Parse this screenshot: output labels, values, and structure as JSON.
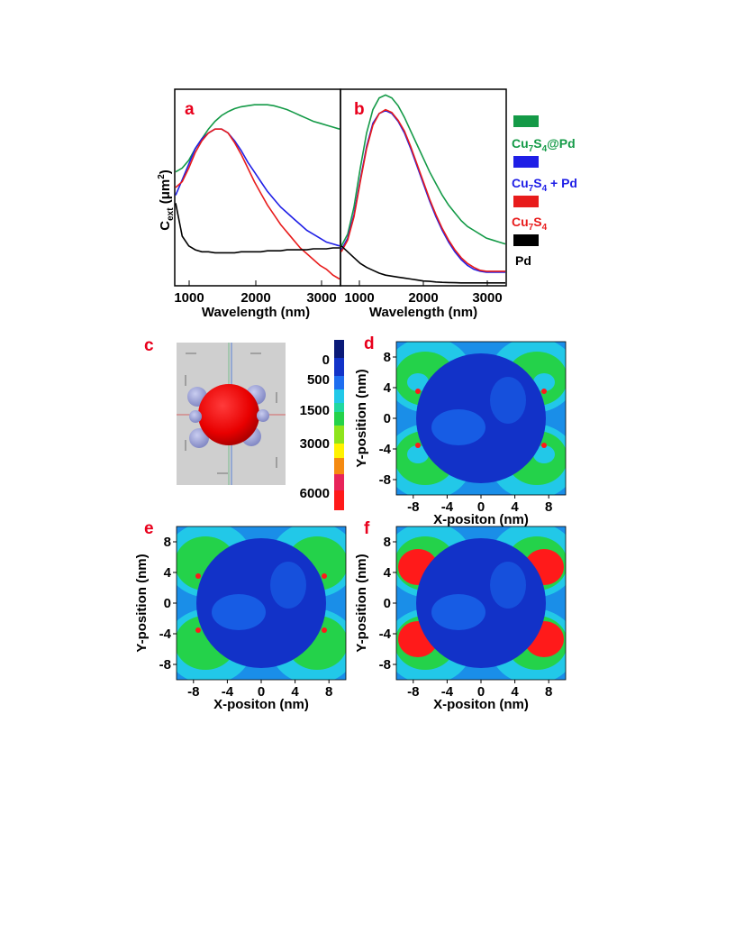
{
  "panel_letters": {
    "a": "a",
    "b": "b",
    "c": "c",
    "d": "d",
    "e": "e",
    "f": "f"
  },
  "legend": [
    {
      "name": "Cu7S4@Pd",
      "base": "Cu",
      "sub1": "7",
      "mid": "S",
      "sub2": "4",
      "tail": "@Pd",
      "color": "#149a47"
    },
    {
      "name": "Cu7S4 + Pd",
      "base": "Cu",
      "sub1": "7",
      "mid": "S",
      "sub2": "4",
      "tail": " + Pd",
      "color": "#1f1fe6"
    },
    {
      "name": "Cu7S4",
      "base": "Cu",
      "sub1": "7",
      "mid": "S",
      "sub2": "4",
      "tail": "",
      "color": "#e81c1c"
    },
    {
      "name": "Pd",
      "base": "Pd",
      "sub1": "",
      "mid": "",
      "sub2": "",
      "tail": "",
      "color": "#000000"
    }
  ],
  "ylabel_spectra": {
    "base": "C",
    "sub": "ext",
    "mid": " (μm",
    "sup": "2",
    "tail": ")"
  },
  "colorbar": {
    "ticks": [
      "0",
      "500",
      "1500",
      "3000",
      "6000"
    ]
  },
  "chart_data": [
    {
      "type": "line",
      "panel": "a",
      "xlabel": "Wavelength (nm)",
      "ylabel": "Cext (μm2)",
      "xlim": [
        800,
        3300
      ],
      "ylim": [
        0,
        1
      ],
      "xticks": [
        "1000",
        "2000",
        "3000"
      ],
      "x": [
        800,
        900,
        1000,
        1100,
        1200,
        1300,
        1400,
        1500,
        1600,
        1700,
        1800,
        1900,
        2000,
        2100,
        2200,
        2300,
        2400,
        2500,
        2600,
        2700,
        2800,
        2900,
        3000,
        3100,
        3200,
        3300
      ],
      "series": [
        {
          "name": "Cu7S4@Pd",
          "values": [
            0.58,
            0.6,
            0.64,
            0.7,
            0.75,
            0.8,
            0.84,
            0.87,
            0.89,
            0.905,
            0.915,
            0.92,
            0.925,
            0.925,
            0.925,
            0.92,
            0.91,
            0.9,
            0.885,
            0.87,
            0.855,
            0.84,
            0.83,
            0.82,
            0.81,
            0.8
          ]
        },
        {
          "name": "Cu7S4 + Pd",
          "values": [
            0.46,
            0.54,
            0.62,
            0.7,
            0.75,
            0.78,
            0.8,
            0.8,
            0.78,
            0.74,
            0.69,
            0.63,
            0.58,
            0.53,
            0.48,
            0.44,
            0.4,
            0.37,
            0.34,
            0.31,
            0.28,
            0.26,
            0.24,
            0.22,
            0.21,
            0.2
          ]
        },
        {
          "name": "Cu7S4",
          "values": [
            0.5,
            0.53,
            0.6,
            0.68,
            0.74,
            0.78,
            0.8,
            0.8,
            0.78,
            0.73,
            0.67,
            0.6,
            0.53,
            0.47,
            0.41,
            0.36,
            0.31,
            0.27,
            0.23,
            0.19,
            0.16,
            0.13,
            0.1,
            0.08,
            0.05,
            0.03
          ]
        },
        {
          "name": "Pd",
          "values": [
            0.42,
            0.25,
            0.2,
            0.18,
            0.17,
            0.17,
            0.165,
            0.165,
            0.165,
            0.165,
            0.17,
            0.17,
            0.17,
            0.17,
            0.175,
            0.175,
            0.175,
            0.18,
            0.18,
            0.18,
            0.18,
            0.185,
            0.185,
            0.185,
            0.19,
            0.19
          ]
        }
      ]
    },
    {
      "type": "line",
      "panel": "b",
      "xlabel": "Wavelength (nm)",
      "xlim": [
        700,
        3300
      ],
      "ylim": [
        0,
        1
      ],
      "xticks": [
        "1000",
        "2000",
        "3000"
      ],
      "x": [
        700,
        800,
        900,
        1000,
        1100,
        1200,
        1300,
        1400,
        1500,
        1600,
        1700,
        1800,
        1900,
        2000,
        2100,
        2200,
        2300,
        2400,
        2500,
        2600,
        2700,
        2800,
        2900,
        3000,
        3100,
        3200,
        3300
      ],
      "series": [
        {
          "name": "Cu7S4@Pd",
          "values": [
            0.2,
            0.26,
            0.4,
            0.6,
            0.78,
            0.9,
            0.96,
            0.975,
            0.96,
            0.92,
            0.86,
            0.79,
            0.72,
            0.65,
            0.58,
            0.52,
            0.46,
            0.41,
            0.37,
            0.33,
            0.3,
            0.28,
            0.26,
            0.24,
            0.23,
            0.22,
            0.21
          ]
        },
        {
          "name": "Cu7S4 + Pd",
          "values": [
            0.18,
            0.24,
            0.36,
            0.54,
            0.71,
            0.83,
            0.88,
            0.895,
            0.88,
            0.84,
            0.78,
            0.7,
            0.61,
            0.52,
            0.43,
            0.35,
            0.28,
            0.22,
            0.17,
            0.13,
            0.1,
            0.08,
            0.07,
            0.065,
            0.065,
            0.065,
            0.065
          ]
        },
        {
          "name": "Cu7S4",
          "values": [
            0.17,
            0.23,
            0.35,
            0.53,
            0.7,
            0.82,
            0.88,
            0.9,
            0.885,
            0.845,
            0.79,
            0.71,
            0.62,
            0.53,
            0.44,
            0.36,
            0.29,
            0.23,
            0.18,
            0.14,
            0.11,
            0.09,
            0.075,
            0.07,
            0.07,
            0.07,
            0.07
          ]
        },
        {
          "name": "Pd",
          "values": [
            0.2,
            0.17,
            0.14,
            0.11,
            0.09,
            0.075,
            0.06,
            0.05,
            0.045,
            0.04,
            0.035,
            0.03,
            0.025,
            0.02,
            0.018,
            0.015,
            0.013,
            0.012,
            0.011,
            0.01,
            0.01,
            0.01,
            0.01,
            0.01,
            0.01,
            0.01,
            0.01
          ]
        }
      ]
    },
    {
      "type": "heatmap",
      "panel": "d",
      "xlabel": "X-positon (nm)",
      "ylabel": "Y-position (nm)",
      "xticks": [
        "-8",
        "-4",
        "0",
        "4",
        "8"
      ],
      "yticks": [
        "8",
        "4",
        "0",
        "-4",
        "-8"
      ],
      "hotspot_level": "low"
    },
    {
      "type": "heatmap",
      "panel": "e",
      "xlabel": "X-positon (nm)",
      "ylabel": "Y-position (nm)",
      "xticks": [
        "-8",
        "-4",
        "0",
        "4",
        "8"
      ],
      "yticks": [
        "8",
        "4",
        "0",
        "-4",
        "-8"
      ],
      "hotspot_level": "medium"
    },
    {
      "type": "heatmap",
      "panel": "f",
      "xlabel": "X-positon (nm)",
      "ylabel": "Y-position (nm)",
      "xticks": [
        "-8",
        "-4",
        "0",
        "4",
        "8"
      ],
      "yticks": [
        "8",
        "4",
        "0",
        "-4",
        "-8"
      ],
      "hotspot_level": "high"
    }
  ]
}
